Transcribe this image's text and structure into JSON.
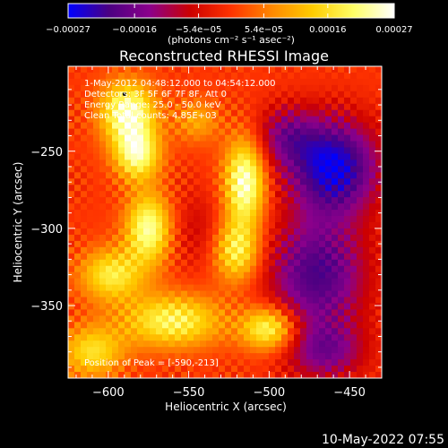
{
  "chart_data": {
    "type": "heatmap",
    "title": "Reconstructed RHESSI Image",
    "xlabel": "Heliocentric X (arcsec)",
    "ylabel": "Heliocentric Y (arcsec)",
    "xlim": [
      -625,
      -430
    ],
    "ylim": [
      -397,
      -195
    ],
    "x_ticks": [
      -600,
      -550,
      -500,
      -450
    ],
    "x_tick_labels": [
      "−600",
      "−550",
      "−500",
      "−450"
    ],
    "y_ticks": [
      -250,
      -300,
      -350
    ],
    "y_tick_labels": [
      "−250",
      "−300",
      "−350"
    ],
    "colorbar": {
      "range": [
        -0.00027,
        0.00027
      ],
      "ticks": [
        -0.00027,
        -0.00016,
        -5.4e-05,
        5.4e-05,
        0.00016,
        0.00027
      ],
      "tick_labels": [
        "−0.00027",
        "−0.00016",
        "−5.4e−05",
        "5.4e−05",
        "0.00016",
        "0.00027"
      ],
      "unit_label": "(photons cm⁻² s⁻¹ asec⁻²)",
      "colormap": [
        "#0000ff",
        "#4b0082",
        "#8b008b",
        "#cc0000",
        "#ff3300",
        "#ff8800",
        "#ffcc00",
        "#ffff66",
        "#ffffff"
      ]
    },
    "annotations": [
      "1-May-2012 04:48:12.000 to 04:54:12.000",
      "Detectors: 3F 5F 6F 7F 8F, Att 0",
      "Energy Range: 25.0 - 50.0 keV",
      "Clean     Total counts: 4.85E+03"
    ],
    "peak_label": "Position of Peak = [-590,-213]",
    "peak_position": [
      -590,
      -213
    ],
    "sources": [
      {
        "x": -588,
        "y": -225,
        "amp": 0.00025,
        "sx": 12,
        "sy": 14
      },
      {
        "x": -582,
        "y": -252,
        "amp": 0.00022,
        "sx": 10,
        "sy": 12
      },
      {
        "x": -575,
        "y": -300,
        "amp": 0.00023,
        "sx": 10,
        "sy": 16
      },
      {
        "x": -598,
        "y": -330,
        "amp": 0.00018,
        "sx": 14,
        "sy": 12
      },
      {
        "x": -560,
        "y": -360,
        "amp": 0.0002,
        "sx": 22,
        "sy": 12
      },
      {
        "x": -515,
        "y": -270,
        "amp": 0.00026,
        "sx": 9,
        "sy": 20
      },
      {
        "x": -520,
        "y": -315,
        "amp": 0.00019,
        "sx": 10,
        "sy": 14
      },
      {
        "x": -500,
        "y": -365,
        "amp": 0.00022,
        "sx": 12,
        "sy": 10
      },
      {
        "x": -610,
        "y": -380,
        "amp": 0.00016,
        "sx": 14,
        "sy": 12
      },
      {
        "x": -545,
        "y": -230,
        "amp": 0.0001,
        "sx": 10,
        "sy": 10
      },
      {
        "x": -460,
        "y": -260,
        "amp": -0.00026,
        "sx": 20,
        "sy": 22
      },
      {
        "x": -470,
        "y": -330,
        "amp": -0.0002,
        "sx": 22,
        "sy": 26
      },
      {
        "x": -490,
        "y": -240,
        "amp": -0.00012,
        "sx": 14,
        "sy": 14
      },
      {
        "x": -545,
        "y": -300,
        "amp": -6e-05,
        "sx": 12,
        "sy": 18
      },
      {
        "x": -465,
        "y": -380,
        "amp": -0.00014,
        "sx": 18,
        "sy": 14
      }
    ]
  },
  "footer": {
    "timestamp": "10-May-2022 07:55"
  }
}
